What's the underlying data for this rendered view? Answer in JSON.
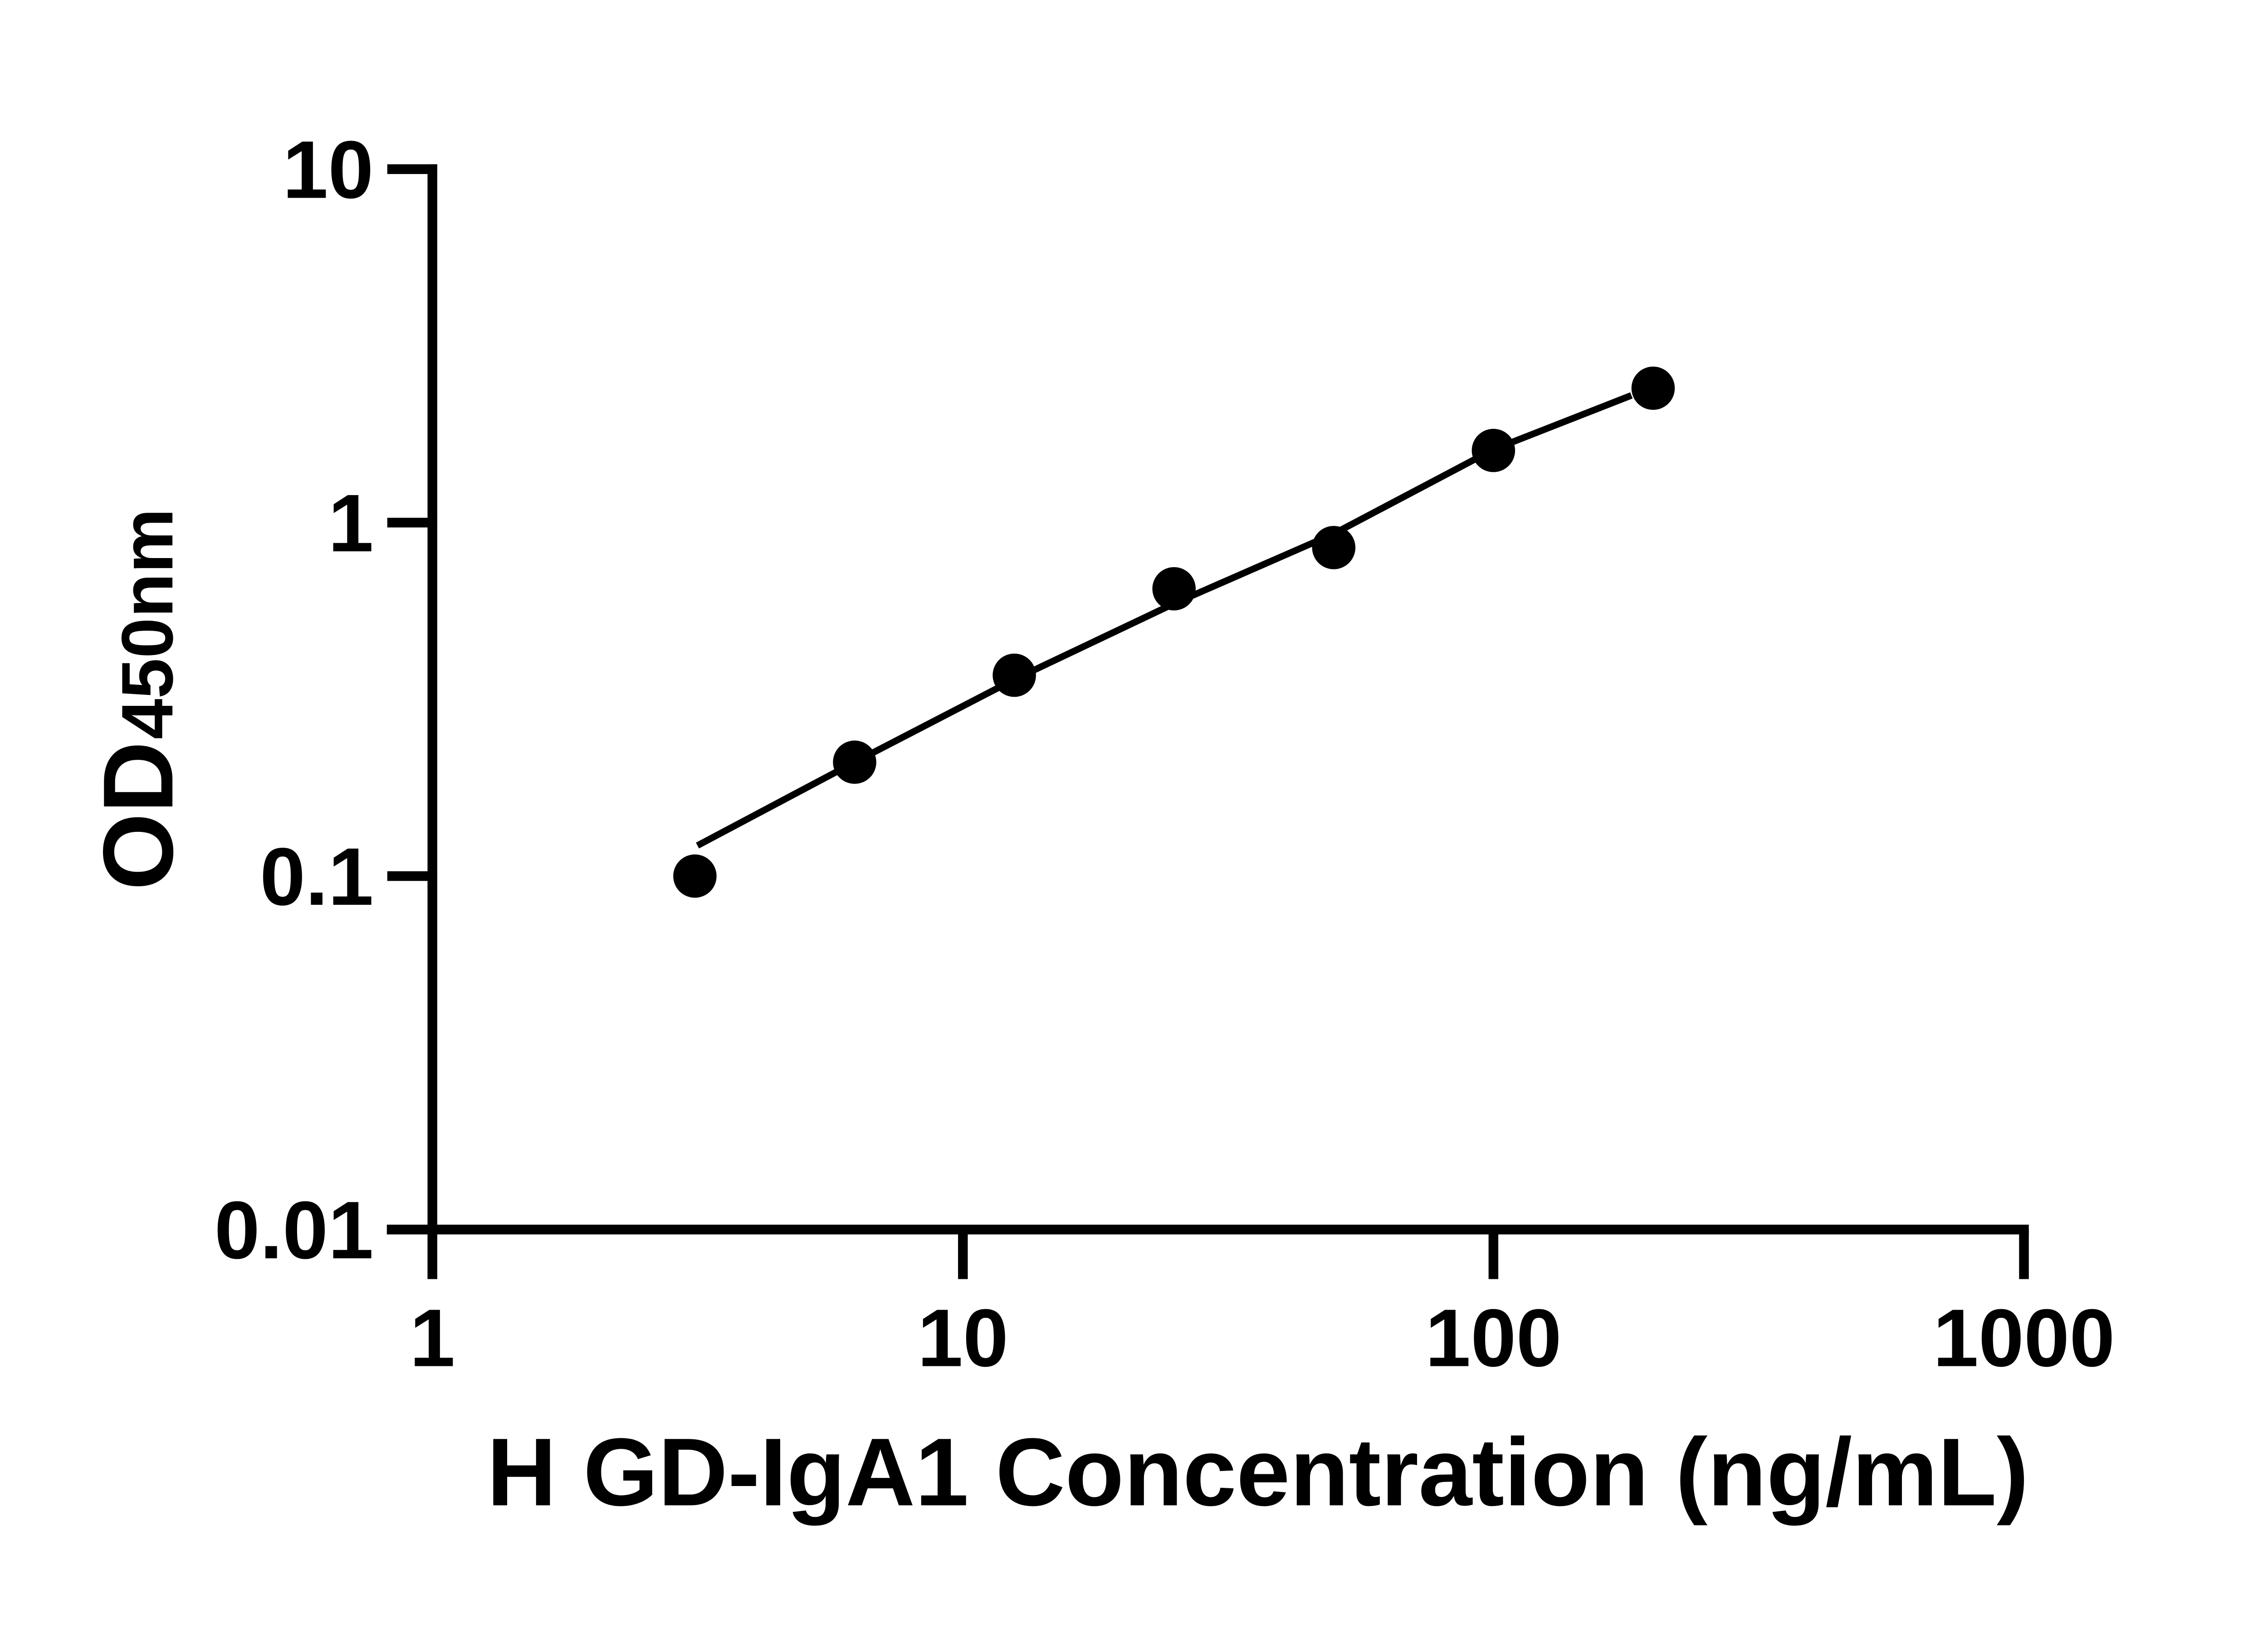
{
  "chart_data": {
    "type": "scatter",
    "title": "",
    "xlabel": "H GD-IgA1 Concentration (ng/mL)",
    "ylabel": "OD450nm",
    "ylabel_main": "OD",
    "ylabel_sub": "450nm",
    "x_scale": "log",
    "y_scale": "log",
    "xlim": [
      1,
      1000
    ],
    "ylim": [
      0.01,
      10
    ],
    "x_ticks": [
      "1",
      "10",
      "100",
      "1000"
    ],
    "x_tick_values": [
      1,
      10,
      100,
      1000
    ],
    "y_ticks": [
      "10",
      "1",
      "0.1",
      "0.01"
    ],
    "y_tick_values": [
      10,
      1,
      0.1,
      0.01
    ],
    "grid": false,
    "legend": false,
    "background": "#ffffff",
    "marker_color": "#000000",
    "line_color": "#000000",
    "points": {
      "x": [
        3.125,
        6.25,
        12.5,
        25,
        50,
        100,
        200
      ],
      "y": [
        0.1,
        0.21,
        0.37,
        0.65,
        0.85,
        1.6,
        2.4
      ]
    },
    "fit_line": {
      "x": [
        3.16,
        6.25,
        12.5,
        25,
        50,
        100,
        182
      ],
      "y": [
        0.122,
        0.21,
        0.36,
        0.59,
        0.93,
        1.61,
        2.29
      ]
    }
  }
}
